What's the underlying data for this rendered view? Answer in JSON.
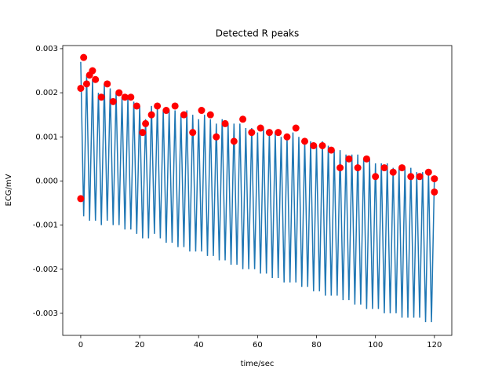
{
  "chart_data": {
    "type": "line",
    "title": "Detected R peaks",
    "x_label": "time/sec",
    "y_label": "ECG/mV",
    "xlim": [
      -6.1,
      125.9
    ],
    "ylim": [
      -0.0035,
      0.00307
    ],
    "xticks": [
      0,
      20,
      40,
      60,
      80,
      100,
      120
    ],
    "yticks": [
      -0.003,
      -0.002,
      -0.001,
      {
        "value": 0,
        "label": "0.000"
      },
      0.001,
      0.002,
      0.003
    ],
    "series": [
      {
        "type": "line",
        "color": "#1f77b4",
        "x": [
          0,
          1,
          2,
          3,
          4,
          5,
          6,
          7,
          8,
          9,
          10,
          11,
          12,
          13,
          14,
          15,
          16,
          17,
          18,
          19,
          20,
          21,
          22,
          23,
          24,
          25,
          26,
          27,
          28,
          29,
          30,
          31,
          32,
          33,
          34,
          35,
          36,
          37,
          38,
          39,
          40,
          41,
          42,
          43,
          44,
          45,
          46,
          47,
          48,
          49,
          50,
          51,
          52,
          53,
          54,
          55,
          56,
          57,
          58,
          59,
          60,
          61,
          62,
          63,
          64,
          65,
          66,
          67,
          68,
          69,
          70,
          71,
          72,
          73,
          74,
          75,
          76,
          77,
          78,
          79,
          80,
          81,
          82,
          83,
          84,
          85,
          86,
          87,
          88,
          89,
          90,
          91,
          92,
          93,
          94,
          95,
          96,
          97,
          98,
          99,
          100,
          101,
          102,
          103,
          104,
          105,
          106,
          107,
          108,
          109,
          110,
          111,
          112,
          113,
          114,
          115,
          116,
          117,
          118,
          119,
          120
        ],
        "values": [
          0.0027,
          -0.0008,
          0.0024,
          -0.0009,
          0.0023,
          -0.0009,
          0.002,
          -0.001,
          0.0022,
          -0.0009,
          0.0021,
          -0.001,
          0.002,
          -0.001,
          0.0019,
          -0.0011,
          0.0019,
          -0.0011,
          0.0018,
          -0.0012,
          0.0017,
          -0.0013,
          0.0014,
          -0.0013,
          0.0017,
          -0.0012,
          0.0017,
          -0.0013,
          0.0016,
          -0.0014,
          0.0016,
          -0.0014,
          0.0016,
          -0.0015,
          0.0015,
          -0.0015,
          0.0016,
          -0.0016,
          0.0015,
          -0.0016,
          0.0014,
          -0.0016,
          0.0015,
          -0.0017,
          0.0014,
          -0.0017,
          0.0013,
          -0.0018,
          0.0014,
          -0.0018,
          0.0013,
          -0.0019,
          0.0013,
          -0.0019,
          0.0013,
          -0.002,
          0.0012,
          -0.002,
          0.0012,
          -0.002,
          0.0011,
          -0.0021,
          0.0012,
          -0.0021,
          0.0011,
          -0.0022,
          0.0011,
          -0.0022,
          0.001,
          -0.0023,
          0.001,
          -0.0023,
          0.0011,
          -0.0023,
          0.001,
          -0.0024,
          0.0009,
          -0.0024,
          0.0009,
          -0.0025,
          0.0008,
          -0.0025,
          0.0009,
          -0.0026,
          0.0008,
          -0.0026,
          0.0007,
          -0.0026,
          0.0007,
          -0.0027,
          0.0006,
          -0.0027,
          0.0006,
          -0.0028,
          0.0006,
          -0.0028,
          0.0005,
          -0.0029,
          0.0005,
          -0.0029,
          0.0004,
          -0.0029,
          0.0004,
          -0.003,
          0.0004,
          -0.003,
          0.0003,
          -0.003,
          0.0003,
          -0.0031,
          0.0003,
          -0.0031,
          0.0003,
          -0.0031,
          0.0002,
          -0.0031,
          0.0002,
          -0.0032,
          0.0002,
          -0.0032,
          0.0001
        ]
      },
      {
        "type": "scatter",
        "color": "#ff0000",
        "x": [
          0,
          0,
          1,
          2,
          3,
          4,
          5,
          7,
          9,
          11,
          13,
          15,
          17,
          19,
          21,
          22,
          24,
          26,
          29,
          32,
          35,
          38,
          41,
          44,
          46,
          49,
          52,
          55,
          58,
          61,
          64,
          67,
          70,
          73,
          76,
          79,
          82,
          85,
          88,
          91,
          94,
          97,
          100,
          103,
          106,
          109,
          112,
          115,
          118,
          120,
          120
        ],
        "values": [
          -0.0004,
          0.0021,
          0.0028,
          0.0022,
          0.0024,
          0.0025,
          0.0023,
          0.0019,
          0.0022,
          0.0018,
          0.002,
          0.0019,
          0.0019,
          0.0017,
          0.0011,
          0.0013,
          0.0015,
          0.0017,
          0.0016,
          0.0017,
          0.0015,
          0.0011,
          0.0016,
          0.0015,
          0.001,
          0.0013,
          0.0009,
          0.0014,
          0.0011,
          0.0012,
          0.0011,
          0.0011,
          0.001,
          0.0012,
          0.0009,
          0.0008,
          0.0008,
          0.0007,
          0.0003,
          0.0005,
          0.0003,
          0.0005,
          0.0001,
          0.0003,
          0.0002,
          0.0003,
          0.0001,
          0.0001,
          0.0002,
          -0.00025,
          5e-05
        ]
      }
    ]
  }
}
